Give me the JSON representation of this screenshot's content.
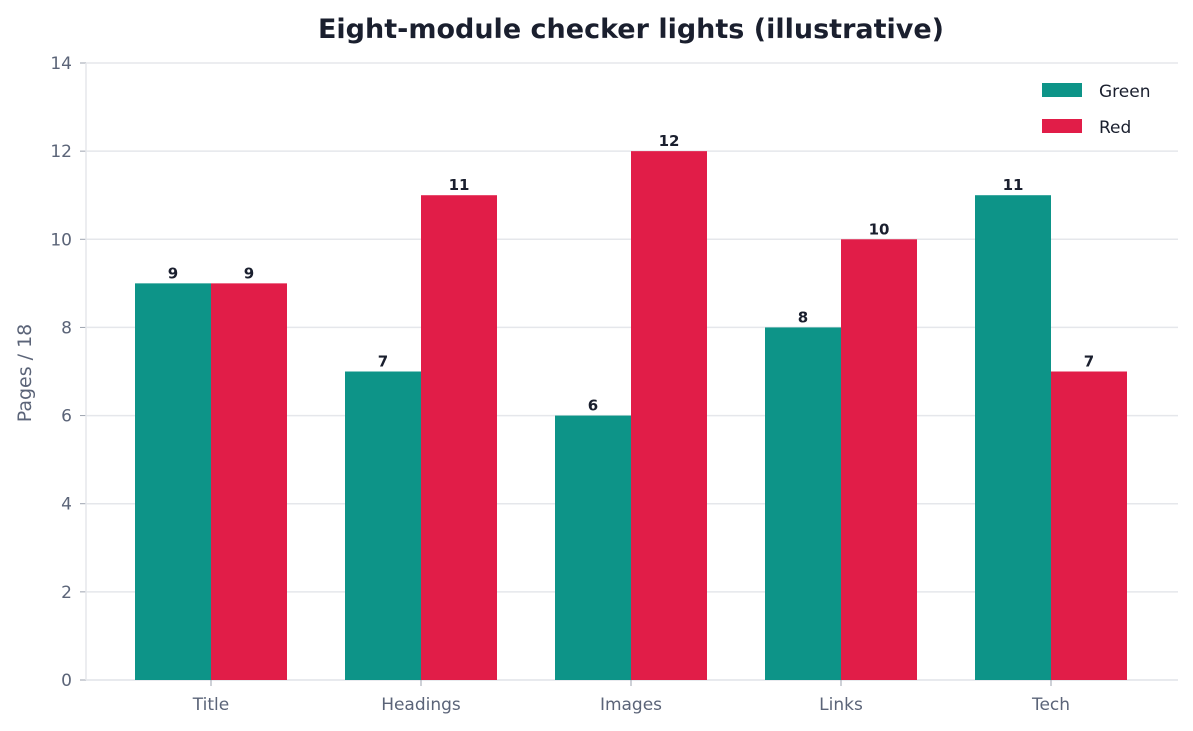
{
  "chart_data": {
    "type": "bar",
    "title": "Eight-module checker lights (illustrative)",
    "xlabel": "",
    "ylabel": "Pages / 18",
    "categories": [
      "Title",
      "Headings",
      "Images",
      "Links",
      "Tech"
    ],
    "series": [
      {
        "name": "Green",
        "color": "#0d9488",
        "values": [
          9,
          7,
          6,
          8,
          11
        ]
      },
      {
        "name": "Red",
        "color": "#e11d48",
        "values": [
          9,
          11,
          12,
          10,
          7
        ]
      }
    ],
    "ylim": [
      0,
      14
    ],
    "yticks": [
      0,
      2,
      4,
      6,
      8,
      10,
      12,
      14
    ],
    "grid": true,
    "legend_position": "top-right",
    "show_value_labels": true
  }
}
